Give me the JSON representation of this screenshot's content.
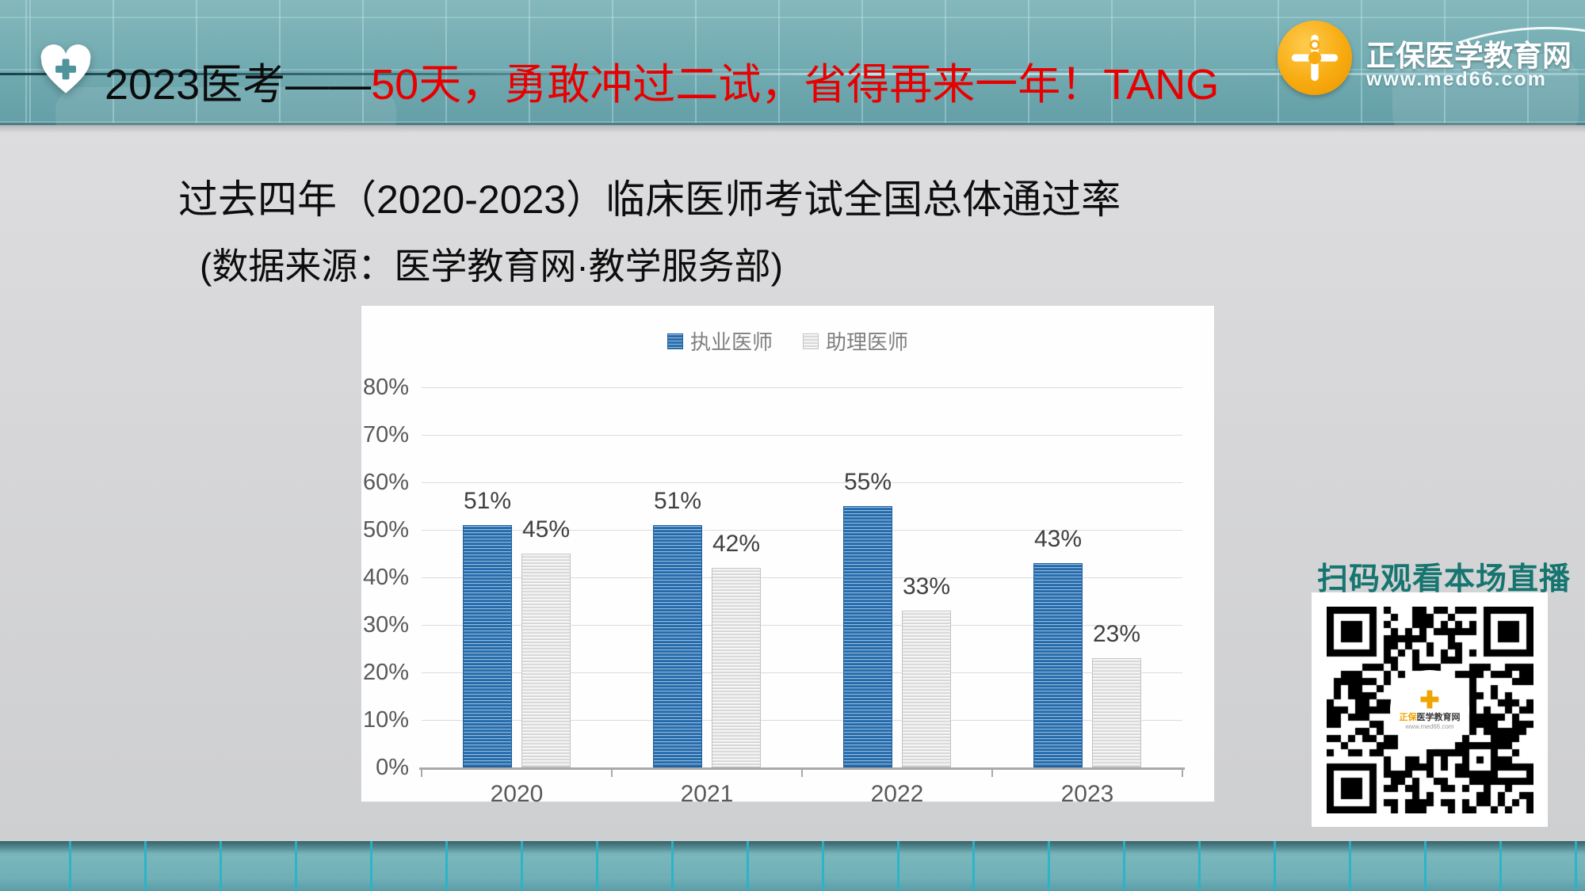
{
  "header": {
    "title_black": "2023医考——",
    "title_red": "50天，勇敢冲过二试，省得再来一年！TANG",
    "logo": {
      "brand": "正保医学教育网",
      "url": "www.med66.com"
    }
  },
  "main": {
    "title_line1": "过去四年（2020-2023）临床医师考试全国总体通过率",
    "title_line2": "(数据来源：医学教育网·教学服务部)"
  },
  "qr": {
    "caption": "扫码观看本场直播",
    "center_logo": {
      "brand_prefix": "正保",
      "brand_rest": "医学教育网",
      "url": "www.med66.com",
      "cross_glyph": "✚"
    }
  },
  "icons": {
    "header_badge": "heart-plus-icon",
    "brand_logo": "medical-cross-icon",
    "qr": "qr-code"
  },
  "colors": {
    "header_teal": "#74adb3",
    "footer_teal": "#6fafb6",
    "grid_line_cyan": "#27b3c9",
    "content_gray": "#d6d6d8",
    "title_red": "#e80000",
    "qr_caption_teal": "#17756f",
    "bar_blue": "#2e79bb",
    "bar_gray": "#efefef",
    "logo_orange": "#f7ab10"
  },
  "chart_data": {
    "type": "bar",
    "title": "",
    "categories": [
      "2020",
      "2021",
      "2022",
      "2023"
    ],
    "series": [
      {
        "name": "执业医师",
        "color": "#2e79bb",
        "values": [
          51,
          51,
          55,
          43
        ]
      },
      {
        "name": "助理医师",
        "color": "#efefef",
        "values": [
          45,
          42,
          33,
          23
        ]
      }
    ],
    "value_label_format": "{v}%",
    "y_axis": {
      "min": 0,
      "max": 80,
      "step": 10,
      "format": "{v}%"
    },
    "xlabel": "",
    "ylabel": "",
    "grid": true,
    "legend_position": "top"
  }
}
